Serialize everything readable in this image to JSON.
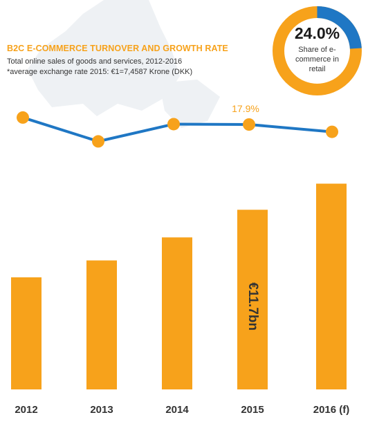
{
  "header": {
    "title": "B2C E-COMMERCE TURNOVER AND GROWTH RATE",
    "subtitle": "Total online sales of goods and services, 2012-2016",
    "note": "*average exchange rate 2015: €1=7,4587 Krone (DKK)"
  },
  "donut": {
    "value": "24.0%",
    "label": "Share of e-commerce in retail",
    "share": 0.24,
    "color_main": "#f7a21b",
    "color_share": "#1f77c4"
  },
  "chart_data": [
    {
      "type": "bar",
      "categories": [
        "2012",
        "2013",
        "2014",
        "2015",
        "2016 (f)"
      ],
      "values": [
        7.3,
        8.4,
        9.9,
        11.7,
        13.4
      ],
      "data_labels": [
        {
          "category": "2015",
          "text": "€11.7bn"
        }
      ],
      "color": "#f7a21b"
    },
    {
      "type": "line",
      "categories": [
        "2012",
        "2013",
        "2014",
        "2015",
        "2016 (f)"
      ],
      "values": [
        19.8,
        13.3,
        18.0,
        17.9,
        15.9
      ],
      "data_labels": [
        {
          "category": "2015",
          "text": "17.9%"
        }
      ],
      "line_color": "#1f77c4",
      "marker_color": "#f7a21b"
    }
  ],
  "colors": {
    "accent": "#f7a21b",
    "line": "#1f77c4",
    "map": "#eef1f4"
  }
}
